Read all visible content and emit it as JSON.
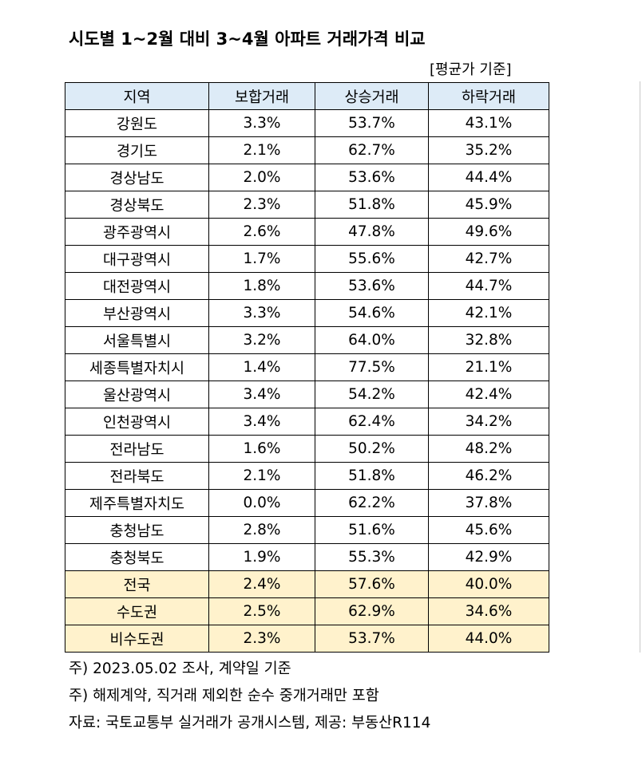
{
  "title": "시도별 1~2월 대비 3~4월 아파트 거래가격 비교",
  "unit_note": "[평균가 기준]",
  "table": {
    "headers": [
      "지역",
      "보합거래",
      "상승거래",
      "하락거래"
    ],
    "rows": [
      [
        "강원도",
        "3.3%",
        "53.7%",
        "43.1%"
      ],
      [
        "경기도",
        "2.1%",
        "62.7%",
        "35.2%"
      ],
      [
        "경상남도",
        "2.0%",
        "53.6%",
        "44.4%"
      ],
      [
        "경상북도",
        "2.3%",
        "51.8%",
        "45.9%"
      ],
      [
        "광주광역시",
        "2.6%",
        "47.8%",
        "49.6%"
      ],
      [
        "대구광역시",
        "1.7%",
        "55.6%",
        "42.7%"
      ],
      [
        "대전광역시",
        "1.8%",
        "53.6%",
        "44.7%"
      ],
      [
        "부산광역시",
        "3.3%",
        "54.6%",
        "42.1%"
      ],
      [
        "서울특별시",
        "3.2%",
        "64.0%",
        "32.8%"
      ],
      [
        "세종특별자치시",
        "1.4%",
        "77.5%",
        "21.1%"
      ],
      [
        "울산광역시",
        "3.4%",
        "54.2%",
        "42.4%"
      ],
      [
        "인천광역시",
        "3.4%",
        "62.4%",
        "34.2%"
      ],
      [
        "전라남도",
        "1.6%",
        "50.2%",
        "48.2%"
      ],
      [
        "전라북도",
        "2.1%",
        "51.8%",
        "46.2%"
      ],
      [
        "제주특별자치도",
        "0.0%",
        "62.2%",
        "37.8%"
      ],
      [
        "충청남도",
        "2.8%",
        "51.6%",
        "45.6%"
      ],
      [
        "충청북도",
        "1.9%",
        "55.3%",
        "42.9%"
      ]
    ],
    "summary_rows": [
      [
        "전국",
        "2.4%",
        "57.6%",
        "40.0%"
      ],
      [
        "수도권",
        "2.5%",
        "62.9%",
        "34.6%"
      ],
      [
        "비수도권",
        "2.3%",
        "53.7%",
        "44.0%"
      ]
    ],
    "colors": {
      "header_bg": "#ddebf7",
      "summary_bg": "#fff2cc"
    }
  },
  "notes": [
    "주) 2023.05.02 조사, 계약일 기준",
    "주) 해제계약, 직거래 제외한 순수 중개거래만 포함",
    "자료: 국토교통부 실거래가 공개시스템, 제공: 부동산R114"
  ]
}
